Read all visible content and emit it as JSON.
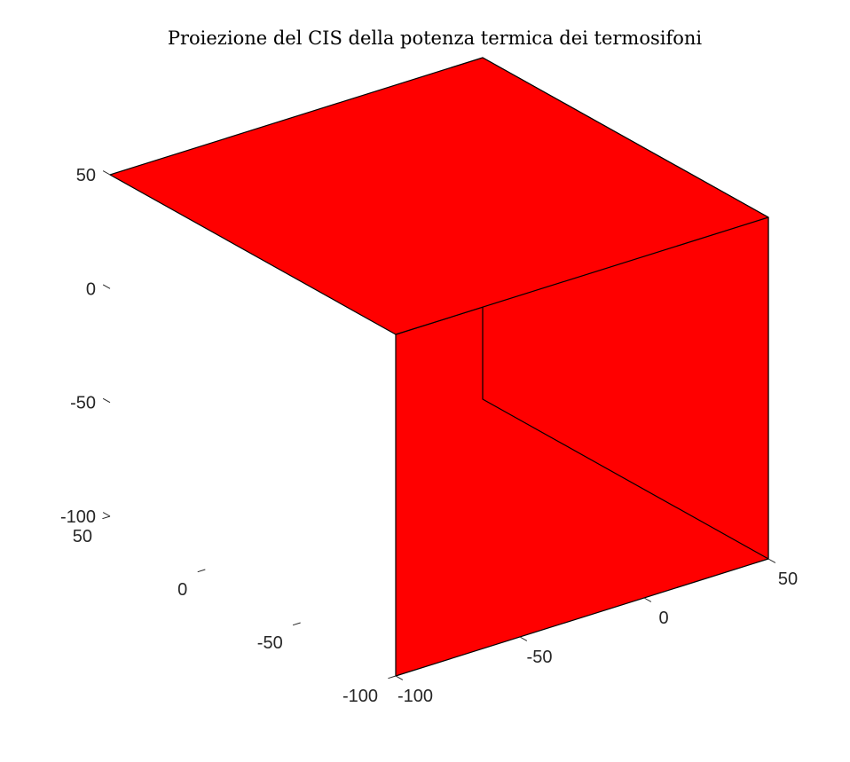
{
  "chart_data": {
    "type": "3d-surface",
    "title": "Proiezione del CIS della potenza termica dei termosifoni",
    "shape": "cube",
    "face_color": "#ff0000",
    "edge_color": "#000000",
    "grid": false,
    "x": {
      "lim": [
        -100,
        50
      ],
      "ticks": [
        -100,
        -50,
        0,
        50
      ]
    },
    "y": {
      "lim": [
        -100,
        50
      ],
      "ticks": [
        -100,
        -50,
        0,
        50
      ]
    },
    "z": {
      "lim": [
        -100,
        50
      ],
      "ticks": [
        -100,
        -50,
        0,
        50
      ]
    }
  }
}
